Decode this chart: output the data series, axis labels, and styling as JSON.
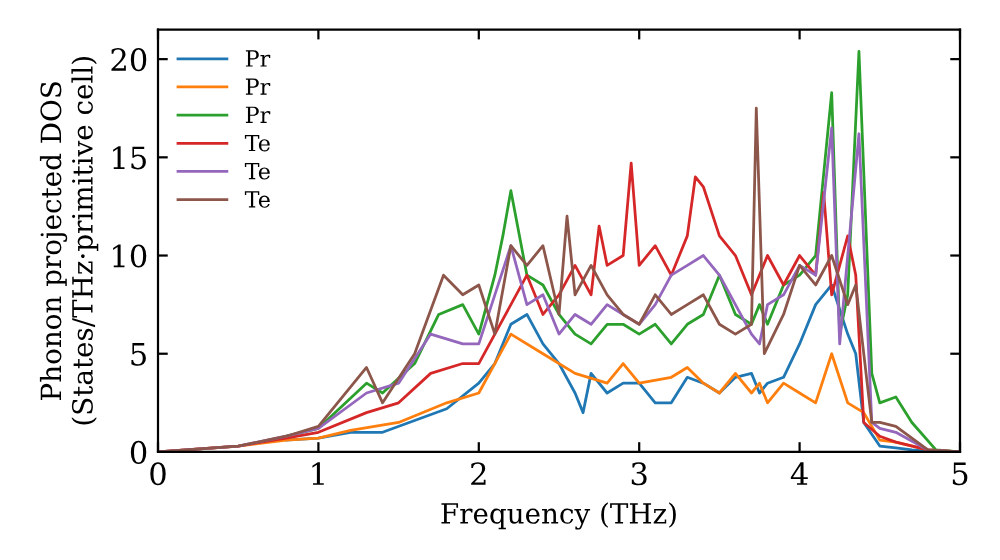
{
  "chart_data": {
    "type": "line",
    "xlabel": "Frequency (THz)",
    "ylabel": "Phonon projected DOS\n(States/THz·primitive cell)",
    "xlim": [
      0,
      5
    ],
    "ylim": [
      0,
      21.5
    ],
    "xticks": [
      0,
      1,
      2,
      3,
      4,
      5
    ],
    "yticks": [
      0,
      5,
      10,
      15,
      20
    ],
    "grid": false,
    "legend": "top left",
    "marker": "none",
    "line_style": "solid",
    "series": [
      {
        "name": "Pr",
        "color": "#1f77b4",
        "x": [
          0.8,
          1.0,
          1.2,
          1.4,
          1.6,
          1.8,
          2.0,
          2.1,
          2.2,
          2.3,
          2.4,
          2.5,
          2.6,
          2.65,
          2.7,
          2.8,
          2.9,
          3.0,
          3.1,
          3.2,
          3.3,
          3.4,
          3.5,
          3.6,
          3.7,
          3.75,
          3.8,
          3.9,
          4.0,
          4.1,
          4.2,
          4.3,
          4.35,
          4.4,
          4.5,
          4.6,
          4.7,
          5.0
        ],
        "values": [
          0.6,
          0.7,
          1.0,
          1.0,
          1.6,
          2.2,
          3.5,
          4.5,
          6.5,
          7.0,
          5.5,
          4.5,
          3.0,
          2.0,
          4.0,
          3.0,
          3.5,
          3.5,
          2.5,
          2.5,
          3.8,
          3.5,
          3.0,
          3.8,
          4.0,
          3.0,
          3.5,
          3.8,
          5.5,
          7.5,
          8.5,
          6.0,
          5.0,
          1.5,
          0.3,
          0.2,
          0.1,
          0
        ]
      },
      {
        "name": "Pr",
        "color": "#ff7f0e",
        "x": [
          0,
          0.5,
          0.8,
          1.0,
          1.2,
          1.5,
          1.8,
          2.0,
          2.2,
          2.4,
          2.6,
          2.8,
          2.9,
          3.0,
          3.2,
          3.3,
          3.4,
          3.5,
          3.6,
          3.7,
          3.75,
          3.8,
          3.9,
          4.0,
          4.1,
          4.2,
          4.3,
          4.4,
          4.5,
          4.6,
          4.8,
          5.0
        ],
        "values": [
          0,
          0.3,
          0.6,
          0.7,
          1.1,
          1.5,
          2.5,
          3.0,
          6.0,
          5.0,
          4.0,
          3.5,
          4.5,
          3.5,
          3.8,
          4.3,
          3.5,
          3.0,
          4.0,
          3.0,
          3.5,
          2.5,
          3.5,
          3.0,
          2.5,
          5.0,
          2.5,
          2.0,
          0.6,
          0.5,
          0.1,
          0
        ]
      },
      {
        "name": "Pr",
        "color": "#2ca02c",
        "x": [
          0.8,
          1.0,
          1.3,
          1.4,
          1.6,
          1.75,
          1.9,
          2.0,
          2.1,
          2.15,
          2.2,
          2.3,
          2.4,
          2.5,
          2.6,
          2.7,
          2.8,
          2.9,
          3.0,
          3.1,
          3.2,
          3.3,
          3.4,
          3.5,
          3.6,
          3.7,
          3.75,
          3.8,
          3.9,
          4.0,
          4.1,
          4.2,
          4.25,
          4.3,
          4.37,
          4.45,
          4.5,
          4.6,
          4.7,
          4.85,
          5.0
        ],
        "values": [
          0.8,
          1.2,
          3.5,
          3.0,
          4.5,
          7.0,
          7.5,
          6.0,
          9.0,
          11.0,
          13.3,
          9.0,
          8.5,
          7.0,
          6.0,
          5.5,
          6.5,
          6.5,
          6.0,
          6.5,
          5.5,
          6.5,
          7.0,
          9.0,
          7.0,
          6.5,
          7.5,
          6.5,
          8.5,
          9.0,
          10.0,
          18.3,
          6.0,
          8.0,
          20.4,
          4.0,
          2.5,
          2.8,
          1.5,
          0.1,
          0
        ]
      },
      {
        "name": "Te",
        "color": "#d62728",
        "x": [
          0,
          0.5,
          0.8,
          1.0,
          1.3,
          1.5,
          1.7,
          1.9,
          2.0,
          2.1,
          2.2,
          2.3,
          2.4,
          2.5,
          2.6,
          2.7,
          2.75,
          2.8,
          2.9,
          2.95,
          3.0,
          3.1,
          3.2,
          3.3,
          3.35,
          3.4,
          3.5,
          3.6,
          3.7,
          3.8,
          3.9,
          4.0,
          4.1,
          4.15,
          4.2,
          4.3,
          4.35,
          4.4,
          4.5,
          4.6,
          4.8,
          5.0
        ],
        "values": [
          0,
          0.3,
          0.7,
          1.0,
          2.0,
          2.5,
          4.0,
          4.5,
          4.5,
          6.0,
          7.5,
          9.0,
          7.0,
          8.0,
          9.5,
          8.0,
          11.5,
          9.5,
          10.0,
          14.7,
          9.5,
          10.5,
          9.0,
          11.0,
          14.0,
          13.5,
          11.0,
          10.0,
          8.0,
          10.0,
          8.5,
          10.0,
          9.0,
          13.2,
          8.0,
          11.0,
          9.0,
          1.5,
          0.8,
          0.5,
          0.1,
          0
        ]
      },
      {
        "name": "Te",
        "color": "#9467bd",
        "x": [
          0,
          0.5,
          0.8,
          1.0,
          1.3,
          1.5,
          1.7,
          1.9,
          2.0,
          2.1,
          2.2,
          2.3,
          2.4,
          2.5,
          2.6,
          2.7,
          2.8,
          2.9,
          3.0,
          3.1,
          3.2,
          3.3,
          3.4,
          3.5,
          3.6,
          3.7,
          3.75,
          3.8,
          3.9,
          4.0,
          4.1,
          4.2,
          4.25,
          4.3,
          4.37,
          4.45,
          4.5,
          4.6,
          4.8,
          5.0
        ],
        "values": [
          0,
          0.3,
          0.8,
          1.2,
          3.0,
          3.5,
          6.0,
          5.5,
          5.5,
          8.0,
          10.5,
          7.5,
          8.0,
          6.0,
          7.0,
          6.5,
          7.5,
          7.0,
          6.5,
          7.5,
          9.0,
          9.5,
          10.0,
          9.0,
          7.5,
          6.0,
          5.5,
          7.5,
          8.0,
          9.5,
          9.0,
          16.5,
          5.5,
          10.0,
          16.2,
          1.5,
          1.2,
          1.0,
          0.1,
          0
        ]
      },
      {
        "name": "Te",
        "color": "#8c564b",
        "x": [
          0,
          0.5,
          0.8,
          1.0,
          1.3,
          1.4,
          1.6,
          1.78,
          1.9,
          2.0,
          2.1,
          2.2,
          2.3,
          2.4,
          2.5,
          2.55,
          2.6,
          2.7,
          2.8,
          2.9,
          3.0,
          3.1,
          3.2,
          3.3,
          3.4,
          3.5,
          3.6,
          3.7,
          3.73,
          3.78,
          3.9,
          4.0,
          4.1,
          4.2,
          4.3,
          4.35,
          4.45,
          4.5,
          4.6,
          4.8,
          5.0
        ],
        "values": [
          0,
          0.3,
          0.8,
          1.3,
          4.3,
          2.5,
          5.0,
          9.0,
          8.0,
          8.5,
          6.0,
          10.5,
          9.5,
          10.5,
          7.0,
          12.0,
          8.0,
          9.5,
          8.0,
          7.0,
          6.5,
          8.0,
          7.0,
          7.5,
          8.0,
          6.5,
          6.0,
          6.5,
          17.5,
          5.0,
          7.0,
          9.5,
          8.5,
          10.0,
          7.5,
          8.5,
          1.5,
          1.5,
          1.3,
          0.1,
          0
        ]
      }
    ]
  }
}
